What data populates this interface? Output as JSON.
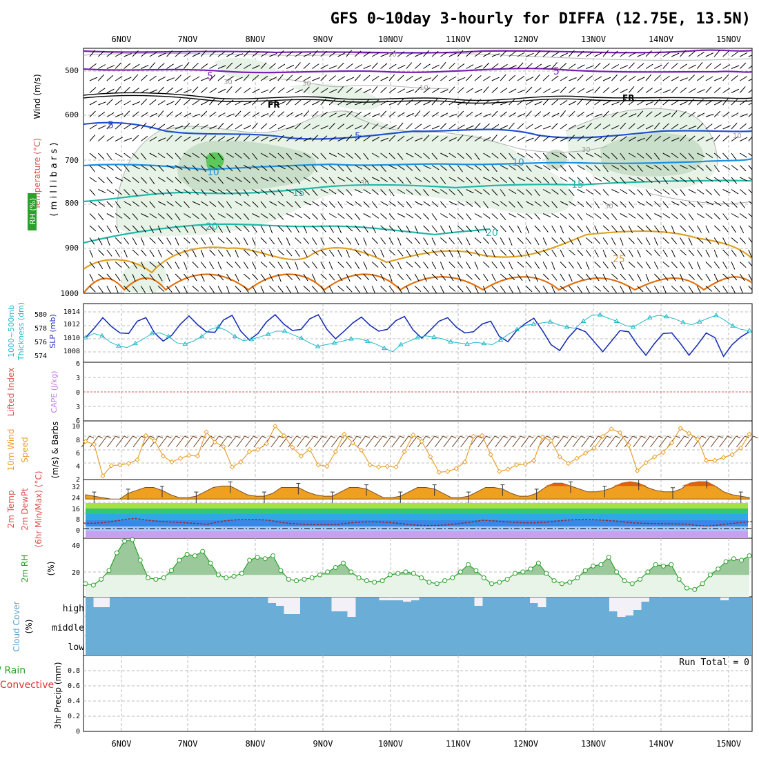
{
  "title": "GFS 0~10day 3-hourly for DIFFA (12.75E, 13.5N)",
  "dates": [
    "6NOV",
    "7NOV",
    "8NOV",
    "9NOV",
    "10NOV",
    "11NOV",
    "12NOV",
    "13NOV",
    "14NOV",
    "15NOV"
  ],
  "colors": {
    "rh": "#4cb84c",
    "temp_purple": "#7a1fb0",
    "temp_blue": "#2050d0",
    "temp_lightblue": "#1e90e0",
    "temp_teal": "#20b8a8",
    "temp_orange": "#e0a020",
    "temp_red": "#e05010",
    "slp": "#1a2fb8",
    "thick": "#20b8c8",
    "wind": "#e8a030",
    "cloud": "#6aaed8"
  },
  "panels": {
    "upper": {
      "ylabels": [
        "Wind (m/s)",
        "Temperature (°C)",
        "RH (%)",
        "( m i l l i b a r s )"
      ],
      "yticks": [
        "500",
        "600",
        "700",
        "800",
        "900",
        "1000"
      ],
      "contour_labels": [
        "5",
        "5",
        "FR",
        "FR",
        "5",
        "5",
        "10",
        "10",
        "15",
        "15",
        "20",
        "20",
        "25",
        "10",
        "30",
        "30",
        "30",
        "30",
        "30",
        "10",
        "10"
      ]
    },
    "slp": {
      "ylabels": [
        "1000~500mb",
        "Thickness (dm)",
        "SLP (mb)"
      ],
      "left_ticks": [
        "580",
        "578",
        "576",
        "574"
      ],
      "right_ticks": [
        "1014",
        "1012",
        "1010",
        "1008"
      ]
    },
    "cape": {
      "ylabels": [
        "Lifted Index",
        "CAPE (J/kg)"
      ],
      "yticks": [
        "6",
        "3",
        "0",
        "3",
        "6"
      ]
    },
    "wind": {
      "ylabels": [
        "10m Wind",
        "Speed",
        "(m/s) & Barbs"
      ],
      "yticks": [
        "10",
        "8",
        "6",
        "4",
        "2"
      ]
    },
    "temp": {
      "ylabels": [
        "2m Temp",
        "2m DewPt",
        "(6hr Min/Max) (°C)"
      ],
      "yticks": [
        "32",
        "24",
        "16",
        "8",
        "0"
      ]
    },
    "rh": {
      "ylabels": [
        "2m RH",
        "(%)"
      ],
      "yticks": [
        "40",
        "20"
      ]
    },
    "cloud": {
      "ylabels": [
        "Cloud Cover",
        "(%)"
      ],
      "levels": [
        "high",
        "middle",
        "low"
      ]
    },
    "precip": {
      "ylabels": [
        "Total / Rain",
        "Convective",
        "3hr Precip (mm)"
      ],
      "yticks": [
        "0.8",
        "0.6",
        "0.4",
        "0.2",
        "0"
      ],
      "run_total": "Run Total = 0"
    }
  },
  "chart_data": [
    {
      "type": "line",
      "title": "1000~500mb Thickness (dm) & SLP (mb)",
      "x_unit": "3-hourly steps (0 = 5NOV 12Z)",
      "series": [
        {
          "name": "SLP (mb)",
          "axis": "right",
          "ylim": [
            1006,
            1016
          ],
          "values": [
            1010.2,
            1011.8,
            1013.6,
            1012.1,
            1011.0,
            1010.9,
            1013.0,
            1013.6,
            1011.0,
            1009.6,
            1010.6,
            1012.5,
            1013.9,
            1012.4,
            1011.2,
            1011.1,
            1013.2,
            1014.0,
            1011.3,
            1009.8,
            1010.9,
            1012.9,
            1014.1,
            1012.5,
            1011.4,
            1011.6,
            1013.4,
            1014.1,
            1011.6,
            1010.0,
            1011.3,
            1012.7,
            1013.7,
            1012.3,
            1011.3,
            1011.6,
            1013.1,
            1013.8,
            1011.5,
            1010.1,
            1011.5,
            1013.0,
            1013.6,
            1012.0,
            1011.0,
            1011.2,
            1012.5,
            1013.0,
            1010.4,
            1009.5,
            1011.4,
            1012.6,
            1013.5,
            1011.4,
            1009.0,
            1008.0,
            1010.2,
            1011.8,
            1011.2,
            1009.5,
            1007.8,
            1009.6,
            1011.4,
            1011.2,
            1009.0,
            1007.2,
            1009.2,
            1010.9,
            1011.0,
            1009.2,
            1007.2,
            1009.0,
            1011.0,
            1010.2,
            1007.0,
            1009.0,
            1010.3,
            1011.2
          ]
        },
        {
          "name": "Thickness (dm)",
          "axis": "left",
          "ylim": [
            572,
            582
          ],
          "values": [
            576.2,
            576.9,
            576.5,
            575.4,
            574.8,
            574.5,
            575.2,
            576.0,
            576.9,
            577.0,
            576.4,
            575.3,
            575.1,
            575.6,
            576.4,
            577.6,
            578.0,
            577.4,
            576.4,
            575.7,
            575.9,
            576.3,
            576.8,
            577.3,
            577.3,
            576.7,
            576.1,
            575.3,
            574.7,
            575.0,
            575.3,
            575.6,
            576.0,
            576.0,
            575.6,
            575.1,
            574.4,
            573.8,
            575.0,
            575.6,
            576.2,
            576.5,
            576.3,
            576.0,
            575.5,
            575.3,
            575.1,
            575.4,
            575.2,
            575.0,
            575.8,
            576.8,
            577.6,
            578.3,
            578.5,
            578.7,
            578.9,
            578.4,
            578.0,
            577.8,
            579.0,
            580.0,
            580.1,
            579.5,
            579.0,
            578.3,
            578.0,
            578.8,
            579.6,
            580.0,
            579.8,
            579.4,
            578.8,
            578.4,
            578.9,
            579.5,
            580.0,
            579.2,
            578.2,
            577.6,
            577.4
          ]
        }
      ]
    },
    {
      "type": "line",
      "title": "10m Wind Speed (m/s)",
      "ylim": [
        2,
        10
      ],
      "values": [
        7.2,
        6.8,
        2.5,
        3.9,
        4.0,
        4.2,
        4.7,
        8.0,
        7.3,
        5.2,
        4.4,
        4.9,
        5.3,
        5.2,
        8.5,
        7.1,
        6.5,
        3.7,
        4.4,
        5.8,
        6.1,
        6.9,
        9.3,
        8.0,
        6.4,
        5.2,
        6.1,
        4.0,
        3.8,
        5.8,
        8.2,
        7.0,
        6.0,
        4.0,
        3.7,
        3.8,
        3.7,
        5.8,
        8.1,
        7.2,
        5.1,
        3.0,
        3.1,
        3.5,
        4.4,
        7.9,
        8.0,
        5.4,
        3.1,
        3.4,
        4.0,
        4.1,
        4.6,
        7.8,
        7.3,
        5.1,
        4.2,
        4.9,
        5.6,
        6.3,
        7.9,
        8.9,
        8.4,
        6.7,
        3.2,
        4.3,
        5.1,
        5.7,
        7.0,
        9.0,
        8.3,
        7.5,
        4.6,
        4.6,
        5.0,
        5.4,
        6.3,
        8.2
      ]
    },
    {
      "type": "line",
      "title": "2m RH (%)",
      "ylim": [
        5,
        45
      ],
      "values": [
        14,
        13,
        17,
        23,
        35,
        43,
        44,
        30,
        18,
        17,
        18,
        23,
        30,
        34,
        33,
        36,
        28,
        20,
        18,
        19,
        21,
        30,
        32,
        31,
        33,
        23,
        17,
        16,
        17,
        18,
        20,
        22,
        25,
        28,
        22,
        18,
        16,
        15,
        16,
        20,
        21,
        22,
        21,
        18,
        15,
        14,
        16,
        18,
        22,
        27,
        23,
        18,
        14,
        15,
        17,
        21,
        22,
        24,
        28,
        21,
        16,
        14,
        15,
        18,
        23,
        26,
        27,
        32,
        22,
        16,
        14,
        17,
        22,
        27,
        26,
        27,
        17,
        11,
        10,
        14,
        20,
        24,
        29,
        31,
        30,
        33
      ]
    },
    {
      "type": "area",
      "title": "2m Temp (°C)",
      "ylim": [
        -5,
        35
      ],
      "values": [
        25,
        24,
        23,
        22,
        22,
        26,
        28,
        30,
        30,
        28,
        25,
        23,
        23,
        24,
        27,
        30,
        31,
        31,
        28,
        25,
        24,
        24,
        26,
        30,
        30,
        30,
        27,
        25,
        24,
        24,
        27,
        30,
        30,
        29,
        26,
        23,
        23,
        24,
        27,
        30,
        30,
        29,
        26,
        23,
        23,
        24,
        27,
        30,
        30,
        29,
        26,
        24,
        24,
        26,
        30,
        33,
        33,
        31,
        29,
        27,
        27,
        28,
        30,
        33,
        34,
        33,
        30,
        28,
        27,
        27,
        29,
        33,
        34,
        34,
        31,
        27,
        25,
        24,
        23
      ]
    },
    {
      "type": "bar",
      "title": "Cloud Cover (%) high",
      "values": [
        0,
        14,
        14,
        0,
        0,
        0,
        0,
        0,
        0,
        0,
        0,
        0,
        0,
        0,
        0,
        0,
        0,
        0,
        0,
        0,
        0,
        0,
        0,
        8,
        12,
        24,
        24,
        0,
        0,
        0,
        0,
        20,
        20,
        28,
        0,
        0,
        0,
        4,
        4,
        4,
        6,
        4,
        0,
        0,
        0,
        0,
        0,
        0,
        0,
        12,
        0,
        0,
        0,
        0,
        0,
        0,
        8,
        14,
        0,
        0,
        0,
        0,
        0,
        0,
        0,
        0,
        20,
        28,
        26,
        18,
        6,
        0,
        0,
        0,
        0,
        0,
        0,
        0,
        0,
        0,
        4,
        0,
        0,
        0
      ]
    }
  ]
}
